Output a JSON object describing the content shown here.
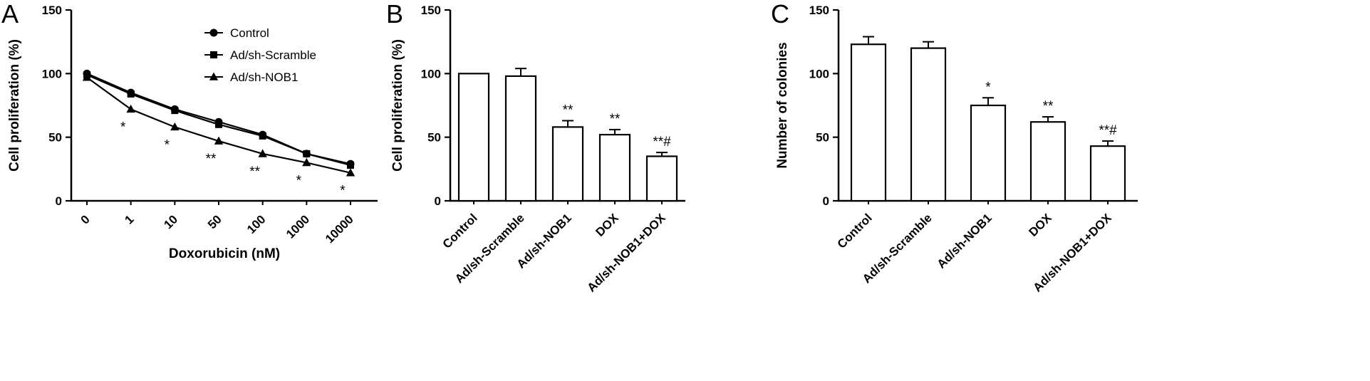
{
  "figure": {
    "background": "#ffffff",
    "ink_color": "#000000",
    "panels": [
      {
        "label": "A"
      },
      {
        "label": "B"
      },
      {
        "label": "C"
      }
    ]
  },
  "chart_data": [
    {
      "panel": "A",
      "type": "line",
      "title": "",
      "xlabel": "Doxorubicin (nM)",
      "ylabel": "Cell proliferation (%)",
      "ylim": [
        0,
        150
      ],
      "yticks": [
        0,
        50,
        100,
        150
      ],
      "categories": [
        "0",
        "1",
        "10",
        "50",
        "100",
        "1000",
        "10000"
      ],
      "grid": false,
      "legend_position": "top-right-inside",
      "series": [
        {
          "name": "Control",
          "marker": "circle",
          "values": [
            100,
            85,
            72,
            62,
            52,
            37,
            29
          ]
        },
        {
          "name": "Ad/sh-Scramble",
          "marker": "square",
          "values": [
            99,
            84,
            71,
            60,
            51,
            37,
            28
          ]
        },
        {
          "name": "Ad/sh-NOB1",
          "marker": "triangle",
          "values": [
            97,
            72,
            58,
            47,
            37,
            30,
            22
          ]
        }
      ],
      "significance": [
        {
          "category_index": 1,
          "label": "*"
        },
        {
          "category_index": 2,
          "label": "*"
        },
        {
          "category_index": 3,
          "label": "**"
        },
        {
          "category_index": 4,
          "label": "**"
        },
        {
          "category_index": 5,
          "label": "*"
        },
        {
          "category_index": 6,
          "label": "*"
        }
      ]
    },
    {
      "panel": "B",
      "type": "bar",
      "title": "",
      "xlabel": "",
      "ylabel": "Cell proliferation (%)",
      "ylim": [
        0,
        150
      ],
      "yticks": [
        0,
        50,
        100,
        150
      ],
      "categories": [
        "Control",
        "Ad/sh-Scramble",
        "Ad/sh-NOB1",
        "DOX",
        "Ad/sh-NOB1+DOX"
      ],
      "values": [
        100,
        98,
        58,
        52,
        35
      ],
      "errors": [
        0,
        6,
        5,
        4,
        3
      ],
      "annotations": [
        "",
        "",
        "**",
        "**",
        "**#"
      ],
      "bar_fill": "#ffffff",
      "bar_stroke": "#000000",
      "grid": false
    },
    {
      "panel": "C",
      "type": "bar",
      "title": "",
      "xlabel": "",
      "ylabel": "Number of colonies",
      "ylim": [
        0,
        150
      ],
      "yticks": [
        0,
        50,
        100,
        150
      ],
      "categories": [
        "Control",
        "Ad/sh-Scramble",
        "Ad/sh-NOB1",
        "DOX",
        "Ad/sh-NOB1+DOX"
      ],
      "values": [
        123,
        120,
        75,
        62,
        43
      ],
      "errors": [
        6,
        5,
        6,
        4,
        4
      ],
      "annotations": [
        "",
        "",
        "*",
        "**",
        "**#"
      ],
      "bar_fill": "#ffffff",
      "bar_stroke": "#000000",
      "grid": false
    }
  ]
}
